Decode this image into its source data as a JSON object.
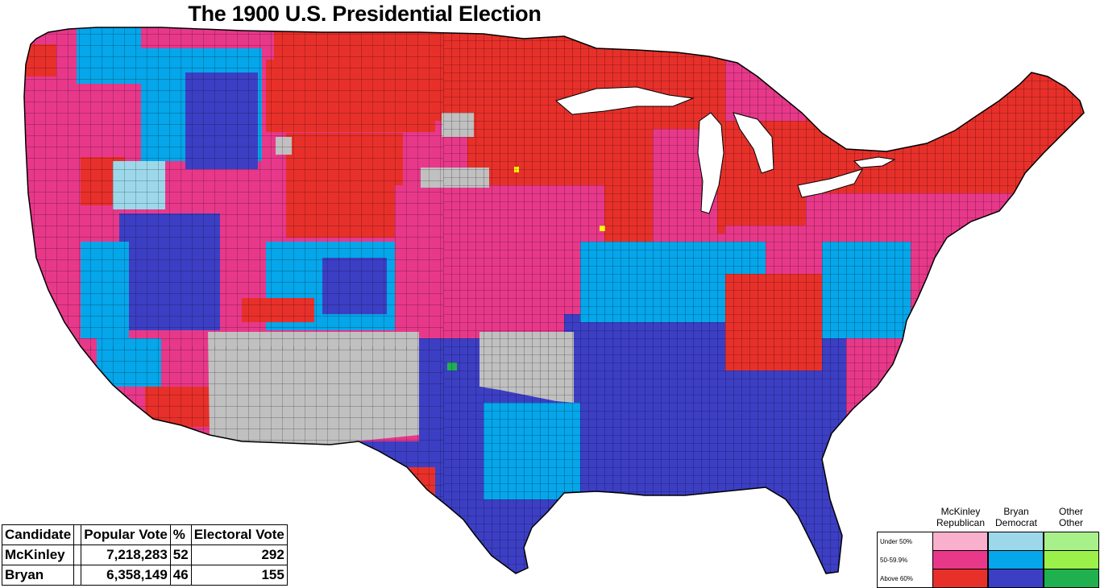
{
  "title": "The 1900 U.S. Presidential Election",
  "colors": {
    "rep_under50": "#f9b0cc",
    "rep_50_60": "#e8388a",
    "rep_above60": "#e8302a",
    "dem_under50": "#9dd8ea",
    "dem_50_60": "#05a6ea",
    "dem_above60": "#3c3fc4",
    "oth_under50": "#a8f08a",
    "oth_50_60": "#9cf04a",
    "oth_above60": "#20b050",
    "no_data": "#c0c0c0"
  },
  "results_table": {
    "headers": [
      "Candidate",
      "",
      "Popular Vote",
      "%",
      "Electoral Vote"
    ],
    "rows": [
      {
        "candidate": "McKinley",
        "popular_vote": "7,218,283",
        "percent": "52",
        "electoral_vote": "292"
      },
      {
        "candidate": "Bryan",
        "popular_vote": "6,358,149",
        "percent": "46",
        "electoral_vote": "155"
      }
    ]
  },
  "legend": {
    "columns": [
      {
        "line1": "McKinley",
        "line2": "Republican"
      },
      {
        "line1": "Bryan",
        "line2": "Democrat"
      },
      {
        "line1": "Other",
        "line2": "Other"
      }
    ],
    "rows": [
      "Under 50%",
      "50-59.9%",
      "Above 60%"
    ]
  }
}
